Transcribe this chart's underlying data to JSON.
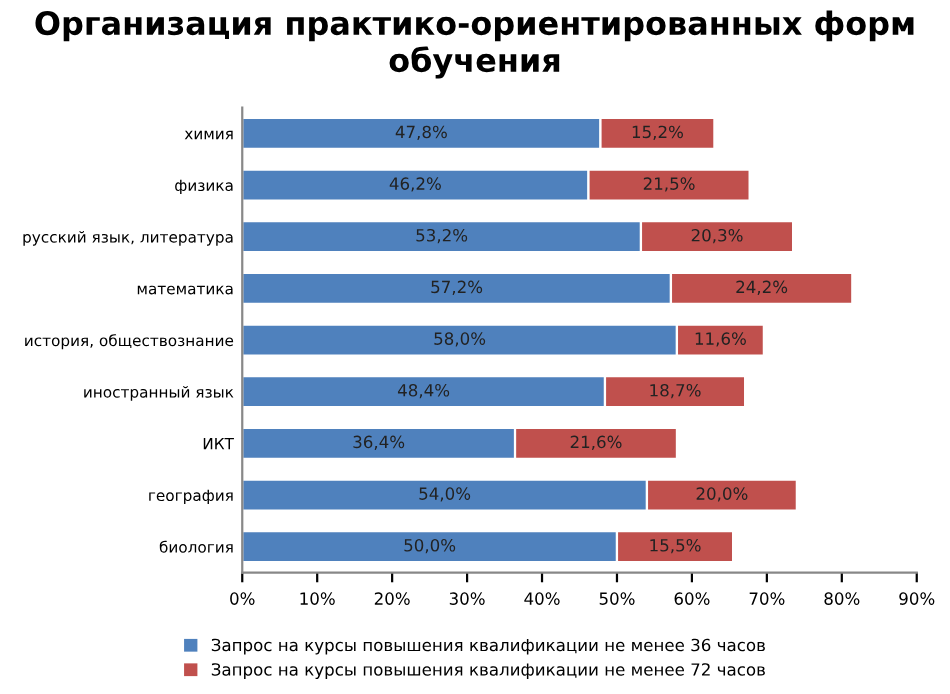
{
  "chart_data": {
    "type": "bar",
    "orientation": "horizontal",
    "stacked": true,
    "title": "Организация практико-ориентированных форм обучения",
    "categories": [
      "химия",
      "физика",
      "русский язык, литература",
      "математика",
      "история, обществознание",
      "иностранный язык",
      "ИКТ",
      "география",
      "биология"
    ],
    "series": [
      {
        "name": "Запрос на курсы повышения квалификации не менее 36 часов",
        "color": "#4f81bd",
        "values": [
          47.8,
          46.2,
          53.2,
          57.2,
          58.0,
          48.4,
          36.4,
          54.0,
          50.0
        ],
        "value_labels": [
          "47,8%",
          "46,2%",
          "53,2%",
          "57,2%",
          "58,0%",
          "48,4%",
          "36,4%",
          "54,0%",
          "50,0%"
        ]
      },
      {
        "name": "Запрос на курсы повышения квалификации не менее 72 часов",
        "color": "#c0504d",
        "values": [
          15.2,
          21.5,
          20.3,
          24.2,
          11.6,
          18.7,
          21.6,
          20.0,
          15.5
        ],
        "value_labels": [
          "15,2%",
          "21,5%",
          "20,3%",
          "24,2%",
          "11,6%",
          "18,7%",
          "21,6%",
          "20,0%",
          "15,5%"
        ]
      }
    ],
    "xlim": [
      0,
      90
    ],
    "xticks": [
      {
        "value": 0,
        "label": "0%"
      },
      {
        "value": 10,
        "label": "10%"
      },
      {
        "value": 20,
        "label": "20%"
      },
      {
        "value": 30,
        "label": "30%"
      },
      {
        "value": 40,
        "label": "40%"
      },
      {
        "value": 50,
        "label": "50%"
      },
      {
        "value": 60,
        "label": "60%"
      },
      {
        "value": 70,
        "label": "70%"
      },
      {
        "value": 80,
        "label": "80%"
      },
      {
        "value": 90,
        "label": "90%"
      }
    ],
    "grid": false,
    "legend": "bottom"
  }
}
